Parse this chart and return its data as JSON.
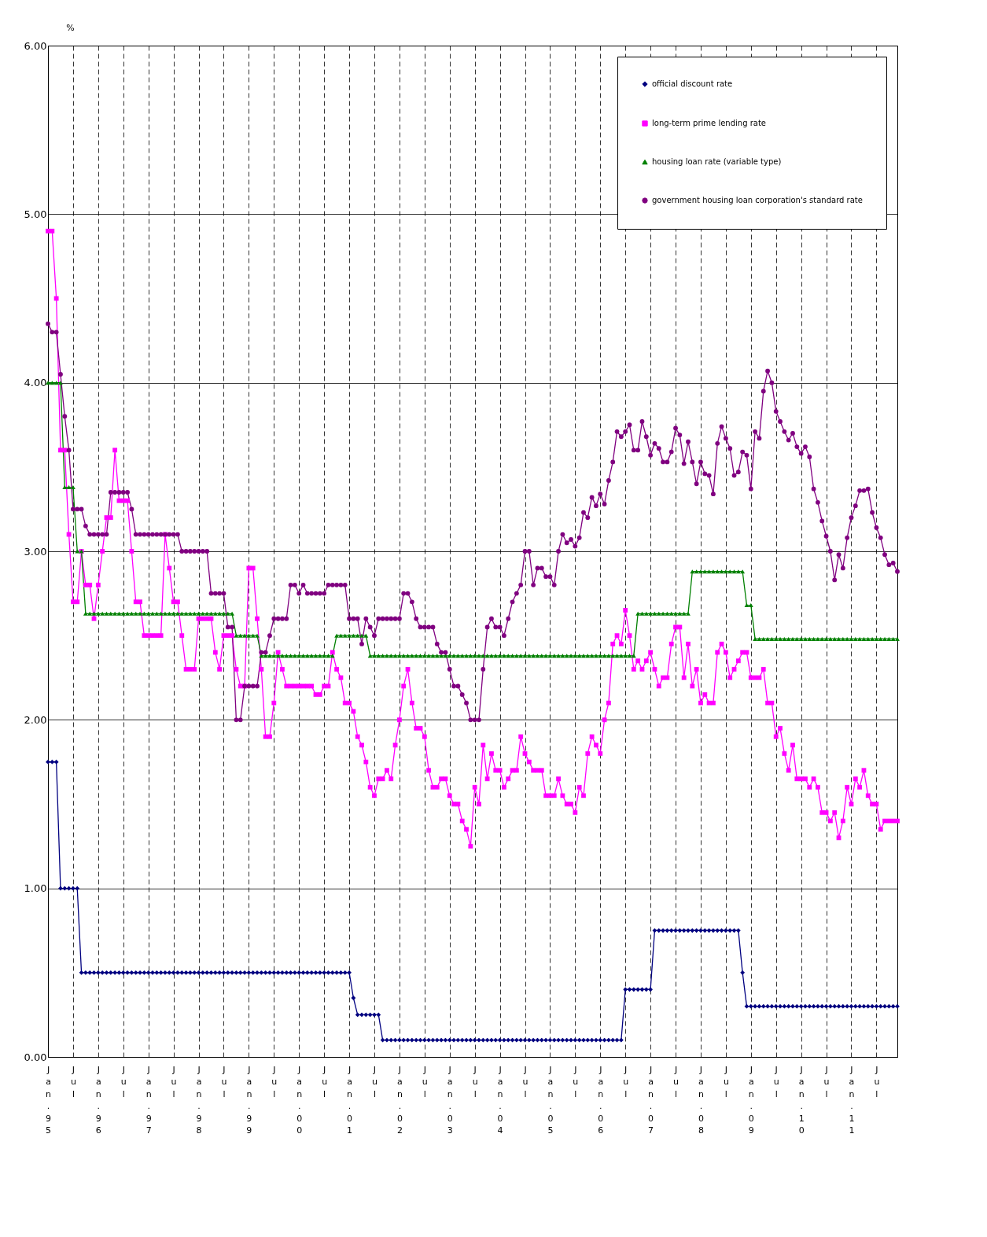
{
  "chart_data": {
    "type": "line",
    "ylabel": "%",
    "categories": [
      "Jan.95",
      null,
      null,
      null,
      null,
      null,
      "Jul",
      null,
      null,
      null,
      null,
      null,
      "Jan.96",
      null,
      null,
      null,
      null,
      null,
      "Jul",
      null,
      null,
      null,
      null,
      null,
      "Jan.97",
      null,
      null,
      null,
      null,
      null,
      "Jul",
      null,
      null,
      null,
      null,
      null,
      "Jan.98",
      null,
      null,
      null,
      null,
      null,
      "Jul",
      null,
      null,
      null,
      null,
      null,
      "Jan.99",
      null,
      null,
      null,
      null,
      null,
      "Jul",
      null,
      null,
      null,
      null,
      null,
      "Jan.00",
      null,
      null,
      null,
      null,
      null,
      "Jul",
      null,
      null,
      null,
      null,
      null,
      "Jan.01",
      null,
      null,
      null,
      null,
      null,
      "Jul",
      null,
      null,
      null,
      null,
      null,
      "Jan.02",
      null,
      null,
      null,
      null,
      null,
      "Jul",
      null,
      null,
      null,
      null,
      null,
      "Jan.03",
      null,
      null,
      null,
      null,
      null,
      "Jul",
      null,
      null,
      null,
      null,
      null,
      "Jan.04",
      null,
      null,
      null,
      null,
      null,
      "Jul",
      null,
      null,
      null,
      null,
      null,
      "Jan.05",
      null,
      null,
      null,
      null,
      null,
      "Jul",
      null,
      null,
      null,
      null,
      null,
      "Jan.06",
      null,
      null,
      null,
      null,
      null,
      "Jul",
      null,
      null,
      null,
      null,
      null,
      "Jan.07",
      null,
      null,
      null,
      null,
      null,
      "Jul",
      null,
      null,
      null,
      null,
      null,
      "Jan.08",
      null,
      null,
      null,
      null,
      null,
      "Jul",
      null,
      null,
      null,
      null,
      null,
      "Jan.09",
      null,
      null,
      null,
      null,
      null,
      "Jul",
      null,
      null,
      null,
      null,
      null,
      "Jan.10",
      null,
      null,
      null,
      null,
      null,
      "Jul",
      null,
      null,
      null,
      null,
      null,
      "Jan.11",
      null,
      null,
      null,
      null,
      null,
      "Jul",
      null,
      null,
      null,
      null,
      null
    ],
    "series": [
      {
        "name": "official discount rate",
        "color": "#000080",
        "marker": "diamond",
        "values": [
          1.75,
          1.75,
          1.75,
          1.0,
          1.0,
          1.0,
          1.0,
          1.0,
          0.5,
          0.5,
          0.5,
          0.5,
          0.5,
          0.5,
          0.5,
          0.5,
          0.5,
          0.5,
          0.5,
          0.5,
          0.5,
          0.5,
          0.5,
          0.5,
          0.5,
          0.5,
          0.5,
          0.5,
          0.5,
          0.5,
          0.5,
          0.5,
          0.5,
          0.5,
          0.5,
          0.5,
          0.5,
          0.5,
          0.5,
          0.5,
          0.5,
          0.5,
          0.5,
          0.5,
          0.5,
          0.5,
          0.5,
          0.5,
          0.5,
          0.5,
          0.5,
          0.5,
          0.5,
          0.5,
          0.5,
          0.5,
          0.5,
          0.5,
          0.5,
          0.5,
          0.5,
          0.5,
          0.5,
          0.5,
          0.5,
          0.5,
          0.5,
          0.5,
          0.5,
          0.5,
          0.5,
          0.5,
          0.5,
          0.35,
          0.25,
          0.25,
          0.25,
          0.25,
          0.25,
          0.25,
          0.1,
          0.1,
          0.1,
          0.1,
          0.1,
          0.1,
          0.1,
          0.1,
          0.1,
          0.1,
          0.1,
          0.1,
          0.1,
          0.1,
          0.1,
          0.1,
          0.1,
          0.1,
          0.1,
          0.1,
          0.1,
          0.1,
          0.1,
          0.1,
          0.1,
          0.1,
          0.1,
          0.1,
          0.1,
          0.1,
          0.1,
          0.1,
          0.1,
          0.1,
          0.1,
          0.1,
          0.1,
          0.1,
          0.1,
          0.1,
          0.1,
          0.1,
          0.1,
          0.1,
          0.1,
          0.1,
          0.1,
          0.1,
          0.1,
          0.1,
          0.1,
          0.1,
          0.1,
          0.1,
          0.1,
          0.1,
          0.1,
          0.1,
          0.4,
          0.4,
          0.4,
          0.4,
          0.4,
          0.4,
          0.4,
          0.75,
          0.75,
          0.75,
          0.75,
          0.75,
          0.75,
          0.75,
          0.75,
          0.75,
          0.75,
          0.75,
          0.75,
          0.75,
          0.75,
          0.75,
          0.75,
          0.75,
          0.75,
          0.75,
          0.75,
          0.75,
          0.5,
          0.3,
          0.3,
          0.3,
          0.3,
          0.3,
          0.3,
          0.3,
          0.3,
          0.3,
          0.3,
          0.3,
          0.3,
          0.3,
          0.3,
          0.3,
          0.3,
          0.3,
          0.3,
          0.3,
          0.3,
          0.3,
          0.3,
          0.3,
          0.3,
          0.3,
          0.3,
          0.3,
          0.3,
          0.3,
          0.3,
          0.3,
          0.3,
          0.3,
          0.3,
          0.3,
          0.3,
          0.3
        ]
      },
      {
        "name": "long-term prime lending rate",
        "color": "#ff00ff",
        "marker": "square",
        "values": [
          4.9,
          4.9,
          4.5,
          3.6,
          3.6,
          3.1,
          2.7,
          2.7,
          3.0,
          2.8,
          2.8,
          2.6,
          2.8,
          3.0,
          3.2,
          3.2,
          3.6,
          3.3,
          3.3,
          3.3,
          3.0,
          2.7,
          2.7,
          2.5,
          2.5,
          2.5,
          2.5,
          2.5,
          3.1,
          2.9,
          2.7,
          2.7,
          2.5,
          2.3,
          2.3,
          2.3,
          2.6,
          2.6,
          2.6,
          2.6,
          2.4,
          2.3,
          2.5,
          2.5,
          2.5,
          2.3,
          2.2,
          2.2,
          2.9,
          2.9,
          2.6,
          2.3,
          1.9,
          1.9,
          2.1,
          2.4,
          2.3,
          2.2,
          2.2,
          2.2,
          2.2,
          2.2,
          2.2,
          2.2,
          2.15,
          2.15,
          2.2,
          2.2,
          2.4,
          2.3,
          2.25,
          2.1,
          2.1,
          2.05,
          1.9,
          1.85,
          1.75,
          1.6,
          1.55,
          1.65,
          1.65,
          1.7,
          1.65,
          1.85,
          2.0,
          2.2,
          2.3,
          2.1,
          1.95,
          1.95,
          1.9,
          1.7,
          1.6,
          1.6,
          1.65,
          1.65,
          1.55,
          1.5,
          1.5,
          1.4,
          1.35,
          1.25,
          1.6,
          1.5,
          1.85,
          1.65,
          1.8,
          1.7,
          1.7,
          1.6,
          1.65,
          1.7,
          1.7,
          1.9,
          1.8,
          1.75,
          1.7,
          1.7,
          1.7,
          1.55,
          1.55,
          1.55,
          1.65,
          1.55,
          1.5,
          1.5,
          1.45,
          1.6,
          1.55,
          1.8,
          1.9,
          1.85,
          1.8,
          2.0,
          2.1,
          2.45,
          2.5,
          2.45,
          2.65,
          2.5,
          2.3,
          2.35,
          2.3,
          2.35,
          2.4,
          2.3,
          2.2,
          2.25,
          2.25,
          2.45,
          2.55,
          2.55,
          2.25,
          2.45,
          2.2,
          2.3,
          2.1,
          2.15,
          2.1,
          2.1,
          2.4,
          2.45,
          2.4,
          2.25,
          2.3,
          2.35,
          2.4,
          2.4,
          2.25,
          2.25,
          2.25,
          2.3,
          2.1,
          2.1,
          1.9,
          1.95,
          1.8,
          1.7,
          1.85,
          1.65,
          1.65,
          1.65,
          1.6,
          1.65,
          1.6,
          1.45,
          1.45,
          1.4,
          1.45,
          1.3,
          1.4,
          1.6,
          1.5,
          1.65,
          1.6,
          1.7,
          1.55,
          1.5,
          1.5,
          1.35,
          1.4,
          1.4,
          1.4,
          1.4
        ]
      },
      {
        "name": "housing loan rate (variable type)",
        "color": "#008000",
        "marker": "triangle",
        "values": [
          4.0,
          4.0,
          4.0,
          4.0,
          3.38,
          3.38,
          3.38,
          3.0,
          3.0,
          2.63,
          2.63,
          2.63,
          2.63,
          2.63,
          2.63,
          2.63,
          2.63,
          2.63,
          2.63,
          2.63,
          2.63,
          2.63,
          2.63,
          2.63,
          2.63,
          2.63,
          2.63,
          2.63,
          2.63,
          2.63,
          2.63,
          2.63,
          2.63,
          2.63,
          2.63,
          2.63,
          2.63,
          2.63,
          2.63,
          2.63,
          2.63,
          2.63,
          2.63,
          2.63,
          2.63,
          2.5,
          2.5,
          2.5,
          2.5,
          2.5,
          2.5,
          2.38,
          2.38,
          2.38,
          2.38,
          2.38,
          2.38,
          2.38,
          2.38,
          2.38,
          2.38,
          2.38,
          2.38,
          2.38,
          2.38,
          2.38,
          2.38,
          2.38,
          2.38,
          2.5,
          2.5,
          2.5,
          2.5,
          2.5,
          2.5,
          2.5,
          2.5,
          2.38,
          2.38,
          2.38,
          2.38,
          2.38,
          2.38,
          2.38,
          2.38,
          2.38,
          2.38,
          2.38,
          2.38,
          2.38,
          2.38,
          2.38,
          2.38,
          2.38,
          2.38,
          2.38,
          2.38,
          2.38,
          2.38,
          2.38,
          2.38,
          2.38,
          2.38,
          2.38,
          2.38,
          2.38,
          2.38,
          2.38,
          2.38,
          2.38,
          2.38,
          2.38,
          2.38,
          2.38,
          2.38,
          2.38,
          2.38,
          2.38,
          2.38,
          2.38,
          2.38,
          2.38,
          2.38,
          2.38,
          2.38,
          2.38,
          2.38,
          2.38,
          2.38,
          2.38,
          2.38,
          2.38,
          2.38,
          2.38,
          2.38,
          2.38,
          2.38,
          2.38,
          2.38,
          2.38,
          2.38,
          2.63,
          2.63,
          2.63,
          2.63,
          2.63,
          2.63,
          2.63,
          2.63,
          2.63,
          2.63,
          2.63,
          2.63,
          2.63,
          2.88,
          2.88,
          2.88,
          2.88,
          2.88,
          2.88,
          2.88,
          2.88,
          2.88,
          2.88,
          2.88,
          2.88,
          2.88,
          2.68,
          2.68,
          2.48,
          2.48,
          2.48,
          2.48,
          2.48,
          2.48,
          2.48,
          2.48,
          2.48,
          2.48,
          2.48,
          2.48,
          2.48,
          2.48,
          2.48,
          2.48,
          2.48,
          2.48,
          2.48,
          2.48,
          2.48,
          2.48,
          2.48,
          2.48,
          2.48,
          2.48,
          2.48,
          2.48,
          2.48,
          2.48,
          2.48,
          2.48,
          2.48,
          2.48,
          2.48
        ]
      },
      {
        "name": "government housing loan corporation's standard rate",
        "color": "#800080",
        "marker": "circle",
        "values": [
          4.35,
          4.3,
          4.3,
          4.05,
          3.8,
          3.6,
          3.25,
          3.25,
          3.25,
          3.15,
          3.1,
          3.1,
          3.1,
          3.1,
          3.1,
          3.35,
          3.35,
          3.35,
          3.35,
          3.35,
          3.25,
          3.1,
          3.1,
          3.1,
          3.1,
          3.1,
          3.1,
          3.1,
          3.1,
          3.1,
          3.1,
          3.1,
          3.0,
          3.0,
          3.0,
          3.0,
          3.0,
          3.0,
          3.0,
          2.75,
          2.75,
          2.75,
          2.75,
          2.55,
          2.55,
          2.0,
          2.0,
          2.2,
          2.2,
          2.2,
          2.2,
          2.4,
          2.4,
          2.5,
          2.6,
          2.6,
          2.6,
          2.6,
          2.8,
          2.8,
          2.75,
          2.8,
          2.75,
          2.75,
          2.75,
          2.75,
          2.75,
          2.8,
          2.8,
          2.8,
          2.8,
          2.8,
          2.6,
          2.6,
          2.6,
          2.45,
          2.6,
          2.55,
          2.5,
          2.6,
          2.6,
          2.6,
          2.6,
          2.6,
          2.6,
          2.75,
          2.75,
          2.7,
          2.6,
          2.55,
          2.55,
          2.55,
          2.55,
          2.45,
          2.4,
          2.4,
          2.3,
          2.2,
          2.2,
          2.15,
          2.1,
          2.0,
          2.0,
          2.0,
          2.3,
          2.55,
          2.6,
          2.55,
          2.55,
          2.5,
          2.6,
          2.7,
          2.75,
          2.8,
          3.0,
          3.0,
          2.8,
          2.9,
          2.9,
          2.85,
          2.85,
          2.8,
          3.0,
          3.1,
          3.05,
          3.07,
          3.03,
          3.08,
          3.23,
          3.2,
          3.32,
          3.27,
          3.34,
          3.28,
          3.42,
          3.53,
          3.71,
          3.68,
          3.71,
          3.75,
          3.6,
          3.6,
          3.77,
          3.68,
          3.57,
          3.64,
          3.61,
          3.53,
          3.53,
          3.59,
          3.73,
          3.69,
          3.52,
          3.65,
          3.53,
          3.4,
          3.53,
          3.46,
          3.45,
          3.34,
          3.64,
          3.74,
          3.67,
          3.61,
          3.45,
          3.47,
          3.59,
          3.57,
          3.37,
          3.71,
          3.67,
          3.95,
          4.07,
          4.0,
          3.83,
          3.77,
          3.71,
          3.66,
          3.7,
          3.62,
          3.58,
          3.62,
          3.56,
          3.37,
          3.29,
          3.18,
          3.09,
          3.0,
          2.83,
          2.98,
          2.9,
          3.08,
          3.2,
          3.27,
          3.36,
          3.36,
          3.37,
          3.23,
          3.14,
          3.08,
          2.98,
          2.92,
          2.93,
          2.88
        ]
      }
    ],
    "ylim": [
      0,
      6
    ],
    "yticks": [
      {
        "value": 0,
        "label": "0.00"
      },
      {
        "value": 1,
        "label": "1.00"
      },
      {
        "value": 2,
        "label": "2.00"
      },
      {
        "value": 3,
        "label": "3.00"
      },
      {
        "value": 4,
        "label": "4.00"
      },
      {
        "value": 5,
        "label": "5.00"
      },
      {
        "value": 6,
        "label": "6.00"
      }
    ],
    "grid": true,
    "legend": "top right"
  }
}
